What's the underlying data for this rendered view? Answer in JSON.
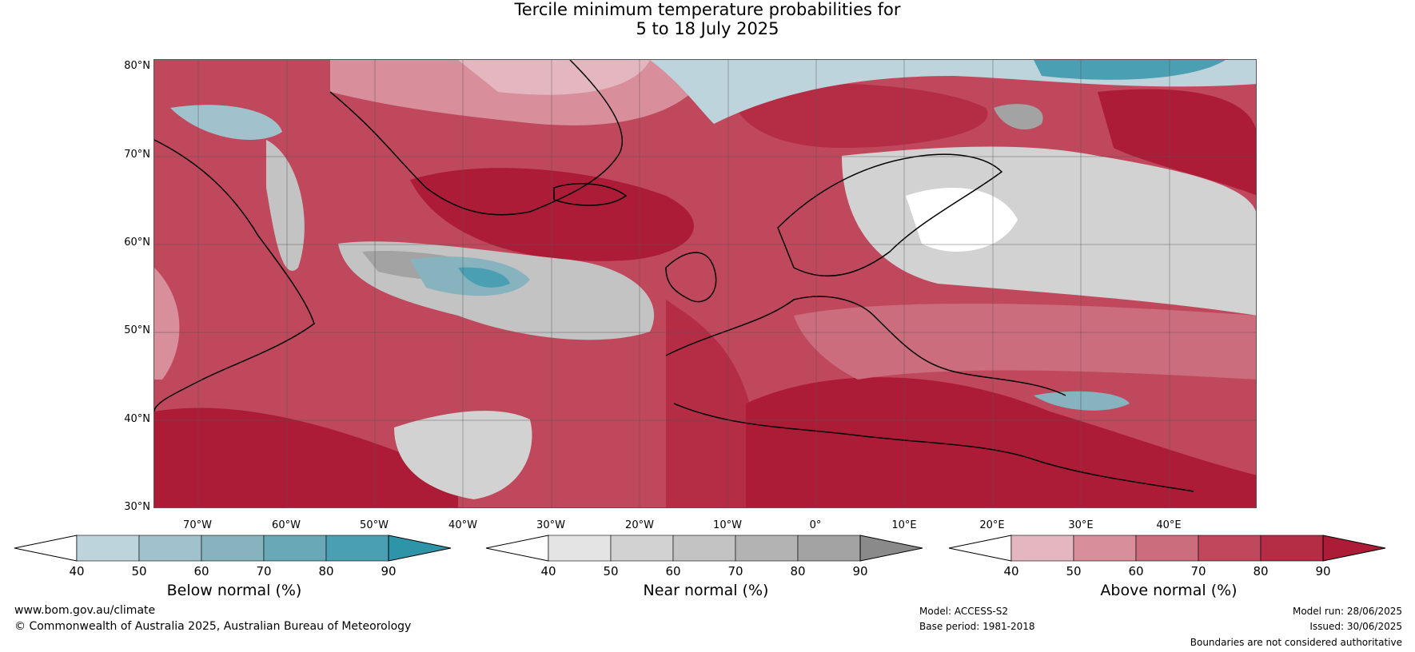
{
  "title": {
    "line1": "Tercile minimum temperature probabilities for",
    "line2": "5 to 18 July 2025"
  },
  "map": {
    "lat_labels": [
      "80°N",
      "70°N",
      "60°N",
      "50°N",
      "40°N",
      "30°N"
    ],
    "lon_labels": [
      "70°W",
      "60°W",
      "50°W",
      "40°W",
      "30°W",
      "20°W",
      "10°W",
      "0°",
      "10°E",
      "20°E",
      "30°E",
      "40°E"
    ],
    "lat_range": [
      30,
      80.5
    ],
    "lon_range": [
      -75,
      50
    ]
  },
  "colorbars": [
    {
      "name": "Below normal (%)",
      "ticks": [
        "40",
        "50",
        "60",
        "70",
        "80",
        "90"
      ],
      "colors": [
        "#ffffff",
        "#bdd4dc",
        "#a1c2cc",
        "#86b3be",
        "#69a8b6",
        "#4b9fb2",
        "#2e94a8"
      ]
    },
    {
      "name": "Near normal (%)",
      "ticks": [
        "40",
        "50",
        "60",
        "70",
        "80",
        "90"
      ],
      "colors": [
        "#ffffff",
        "#e4e4e4",
        "#d2d2d2",
        "#c3c3c3",
        "#b3b3b3",
        "#a3a3a3",
        "#8a8a8a"
      ]
    },
    {
      "name": "Above normal (%)",
      "ticks": [
        "40",
        "50",
        "60",
        "70",
        "80",
        "90"
      ],
      "colors": [
        "#ffffff",
        "#e4b7c0",
        "#d88e9b",
        "#cc6d7d",
        "#c0485c",
        "#b52c45",
        "#ad1c37"
      ]
    }
  ],
  "footer": {
    "url": "www.bom.gov.au/climate",
    "copyright": "© Commonwealth of Australia 2025, Australian Bureau of Meteorology",
    "model": "Model: ACCESS-S2",
    "base_period": "Base period: 1981-2018",
    "model_run": "Model run: 28/06/2025",
    "issued": "Issued: 30/06/2025",
    "disclaimer": "Boundaries are not considered authoritative"
  }
}
